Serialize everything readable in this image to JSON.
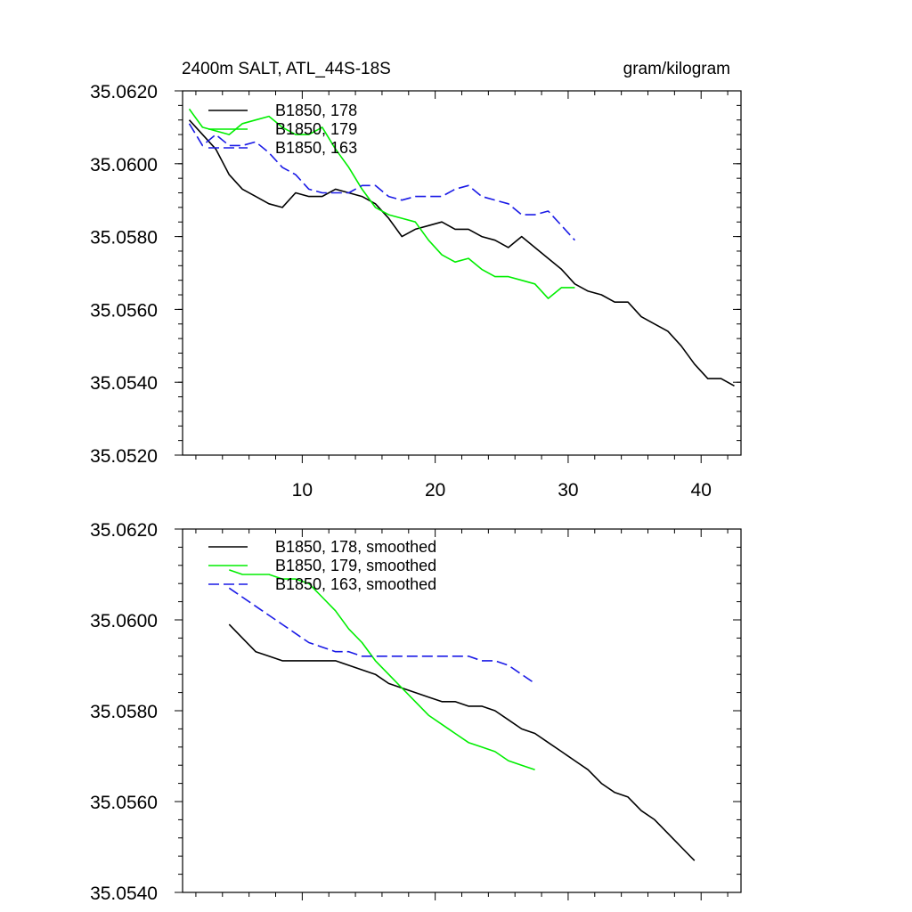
{
  "colors": {
    "black": "#000000",
    "green": "#00ee00",
    "blue": "#1a1ae6"
  },
  "chart_data": [
    {
      "type": "line",
      "title": "2400m SALT, ATL_44S-18S",
      "units": "gram/kilogram",
      "xlim": [
        1,
        43
      ],
      "ylim": [
        35.052,
        35.062
      ],
      "xticks": [
        10,
        20,
        30,
        40
      ],
      "xtick_labels": [
        "10",
        "20",
        "30",
        "40"
      ],
      "yticks": [
        35.052,
        35.054,
        35.056,
        35.058,
        35.06,
        35.062
      ],
      "ytick_labels": [
        "35.0520",
        "35.0540",
        "35.0560",
        "35.0580",
        "35.0600",
        "35.0620"
      ],
      "legend_position": "top-left",
      "series": [
        {
          "name": "B1850, 178",
          "color": "#000000",
          "dash": "solid",
          "x": [
            1.5,
            2.5,
            3.5,
            4.5,
            5.5,
            6.5,
            7.5,
            8.5,
            9.5,
            10.5,
            11.5,
            12.5,
            13.5,
            14.5,
            15.5,
            16.5,
            17.5,
            18.5,
            19.5,
            20.5,
            21.5,
            22.5,
            23.5,
            24.5,
            25.5,
            26.5,
            27.5,
            28.5,
            29.5,
            30.5,
            31.5,
            32.5,
            33.5,
            34.5,
            35.5,
            36.5,
            37.5,
            38.5,
            39.5,
            40.5,
            41.5,
            42.5
          ],
          "y": [
            35.0612,
            35.0608,
            35.0604,
            35.0597,
            35.0593,
            35.0591,
            35.0589,
            35.0588,
            35.0592,
            35.0591,
            35.0591,
            35.0593,
            35.0592,
            35.0591,
            35.0589,
            35.0585,
            35.058,
            35.0582,
            35.0583,
            35.0584,
            35.0582,
            35.0582,
            35.058,
            35.0579,
            35.0577,
            35.058,
            35.0577,
            35.0574,
            35.0571,
            35.0567,
            35.0565,
            35.0564,
            35.0562,
            35.0562,
            35.0558,
            35.0556,
            35.0554,
            35.055,
            35.0545,
            35.0541,
            35.0541,
            35.0539
          ]
        },
        {
          "name": "B1850, 179",
          "color": "#00ee00",
          "dash": "solid",
          "x": [
            1.5,
            2.5,
            3.5,
            4.5,
            5.5,
            6.5,
            7.5,
            8.5,
            9.5,
            10.5,
            11.5,
            12.5,
            13.5,
            14.5,
            15.5,
            16.5,
            17.5,
            18.5,
            19.5,
            20.5,
            21.5,
            22.5,
            23.5,
            24.5,
            25.5,
            26.5,
            27.5,
            28.5,
            29.5,
            30.5
          ],
          "y": [
            35.0615,
            35.061,
            35.0609,
            35.0608,
            35.0611,
            35.0612,
            35.0613,
            35.061,
            35.0608,
            35.0608,
            35.061,
            35.0604,
            35.0599,
            35.0593,
            35.0588,
            35.0586,
            35.0585,
            35.0584,
            35.0579,
            35.0575,
            35.0573,
            35.0574,
            35.0571,
            35.0569,
            35.0569,
            35.0568,
            35.0567,
            35.0563,
            35.0566,
            35.0566
          ]
        },
        {
          "name": "B1850, 163",
          "color": "#1a1ae6",
          "dash": "dashed",
          "x": [
            1.5,
            2.5,
            3.5,
            4.5,
            5.5,
            6.5,
            7.5,
            8.5,
            9.5,
            10.5,
            11.5,
            12.5,
            13.5,
            14.5,
            15.5,
            16.5,
            17.5,
            18.5,
            19.5,
            20.5,
            21.5,
            22.5,
            23.5,
            24.5,
            25.5,
            26.5,
            27.5,
            28.5,
            29.5,
            30.5
          ],
          "y": [
            35.0611,
            35.0605,
            35.0608,
            35.0605,
            35.0605,
            35.0606,
            35.0603,
            35.0599,
            35.0597,
            35.0593,
            35.0592,
            35.0592,
            35.0592,
            35.0594,
            35.0594,
            35.0591,
            35.059,
            35.0591,
            35.0591,
            35.0591,
            35.0593,
            35.0594,
            35.0591,
            35.059,
            35.0589,
            35.0586,
            35.0586,
            35.0587,
            35.0583,
            35.0579
          ]
        }
      ]
    },
    {
      "type": "line",
      "xlim": [
        1,
        43
      ],
      "ylim": [
        35.054,
        35.062
      ],
      "xticks": [
        10,
        20,
        30,
        40
      ],
      "yticks": [
        35.054,
        35.056,
        35.058,
        35.06,
        35.062
      ],
      "ytick_labels": [
        "35.0540",
        "35.0560",
        "35.0580",
        "35.0600",
        "35.0620"
      ],
      "legend_position": "top-left",
      "series": [
        {
          "name": "B1850, 178, smoothed",
          "color": "#000000",
          "dash": "solid",
          "x": [
            4.5,
            5.5,
            6.5,
            7.5,
            8.5,
            9.5,
            10.5,
            11.5,
            12.5,
            13.5,
            14.5,
            15.5,
            16.5,
            17.5,
            18.5,
            19.5,
            20.5,
            21.5,
            22.5,
            23.5,
            24.5,
            25.5,
            26.5,
            27.5,
            28.5,
            29.5,
            30.5,
            31.5,
            32.5,
            33.5,
            34.5,
            35.5,
            36.5,
            37.5,
            38.5,
            39.5
          ],
          "y": [
            35.0599,
            35.0596,
            35.0593,
            35.0592,
            35.0591,
            35.0591,
            35.0591,
            35.0591,
            35.0591,
            35.059,
            35.0589,
            35.0588,
            35.0586,
            35.0585,
            35.0584,
            35.0583,
            35.0582,
            35.0582,
            35.0581,
            35.0581,
            35.058,
            35.0578,
            35.0576,
            35.0575,
            35.0573,
            35.0571,
            35.0569,
            35.0567,
            35.0564,
            35.0562,
            35.0561,
            35.0558,
            35.0556,
            35.0553,
            35.055,
            35.0547
          ]
        },
        {
          "name": "B1850, 179, smoothed",
          "color": "#00ee00",
          "dash": "solid",
          "x": [
            4.5,
            5.5,
            6.5,
            7.5,
            8.5,
            9.5,
            10.5,
            11.5,
            12.5,
            13.5,
            14.5,
            15.5,
            16.5,
            17.5,
            18.5,
            19.5,
            20.5,
            21.5,
            22.5,
            23.5,
            24.5,
            25.5,
            26.5,
            27.5
          ],
          "y": [
            35.0611,
            35.061,
            35.061,
            35.061,
            35.0609,
            35.0609,
            35.0608,
            35.0605,
            35.0602,
            35.0598,
            35.0595,
            35.0591,
            35.0588,
            35.0585,
            35.0582,
            35.0579,
            35.0577,
            35.0575,
            35.0573,
            35.0572,
            35.0571,
            35.0569,
            35.0568,
            35.0567
          ]
        },
        {
          "name": "B1850, 163, smoothed",
          "color": "#1a1ae6",
          "dash": "dashed",
          "x": [
            4.5,
            5.5,
            6.5,
            7.5,
            8.5,
            9.5,
            10.5,
            11.5,
            12.5,
            13.5,
            14.5,
            15.5,
            16.5,
            17.5,
            18.5,
            19.5,
            20.5,
            21.5,
            22.5,
            23.5,
            24.5,
            25.5,
            26.5,
            27.5
          ],
          "y": [
            35.0607,
            35.0605,
            35.0603,
            35.0601,
            35.0599,
            35.0597,
            35.0595,
            35.0594,
            35.0593,
            35.0593,
            35.0592,
            35.0592,
            35.0592,
            35.0592,
            35.0592,
            35.0592,
            35.0592,
            35.0592,
            35.0592,
            35.0591,
            35.0591,
            35.059,
            35.0588,
            35.0586
          ]
        }
      ]
    }
  ]
}
